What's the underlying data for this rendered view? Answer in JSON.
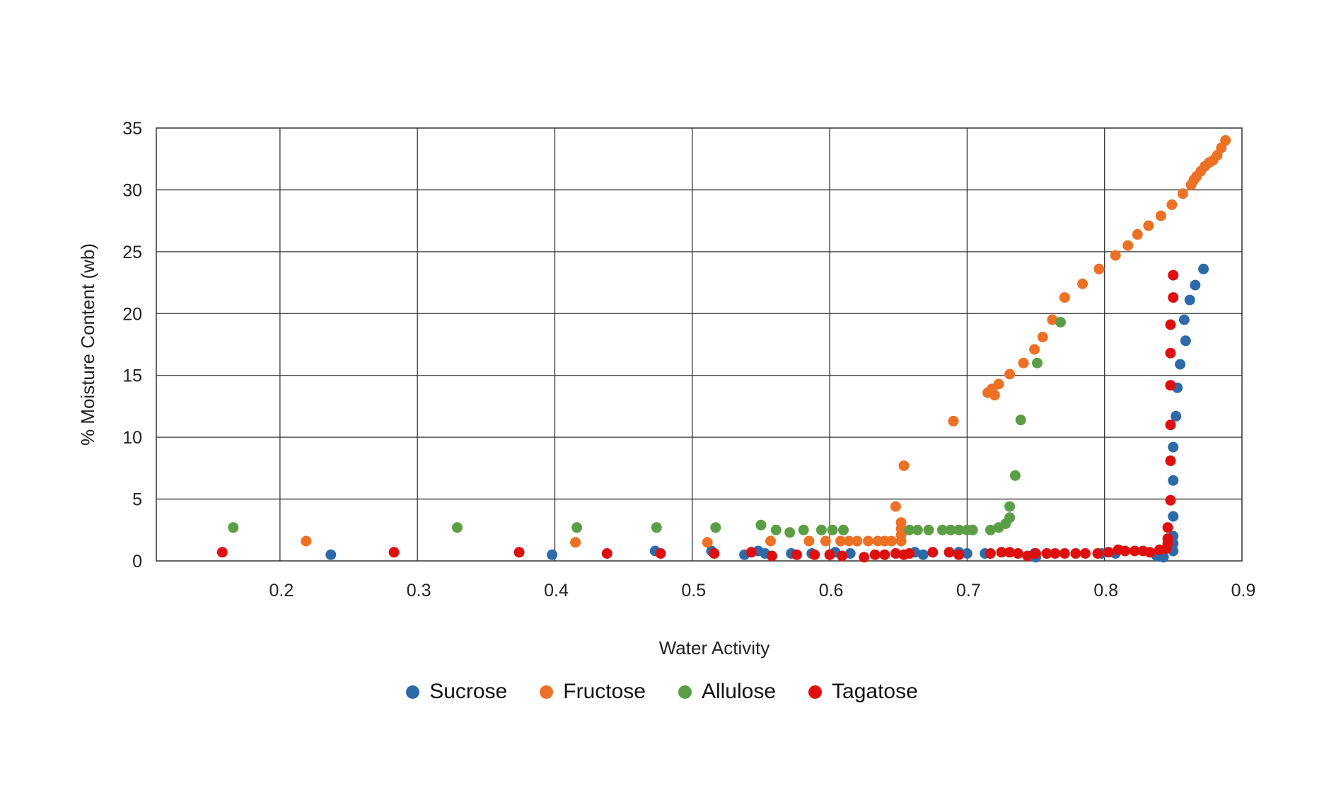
{
  "chart_data": {
    "type": "scatter",
    "title": "",
    "xlabel": "Water Activity",
    "ylabel": "% Moisture Content (wb)",
    "xlim": [
      0.11,
      0.9
    ],
    "ylim": [
      0,
      35
    ],
    "xticks": [
      0.2,
      0.3,
      0.4,
      0.5,
      0.6,
      0.7,
      0.8,
      0.9
    ],
    "yticks": [
      0,
      5,
      10,
      15,
      20,
      25,
      30,
      35
    ],
    "grid": true,
    "legend_position": "bottom",
    "series": [
      {
        "name": "Sucrose",
        "color": "#2E6AA8",
        "points": [
          [
            0.237,
            0.5
          ],
          [
            0.398,
            0.5
          ],
          [
            0.473,
            0.8
          ],
          [
            0.514,
            0.8
          ],
          [
            0.538,
            0.5
          ],
          [
            0.548,
            0.8
          ],
          [
            0.553,
            0.6
          ],
          [
            0.572,
            0.6
          ],
          [
            0.587,
            0.6
          ],
          [
            0.604,
            0.7
          ],
          [
            0.615,
            0.6
          ],
          [
            0.662,
            0.7
          ],
          [
            0.668,
            0.5
          ],
          [
            0.694,
            0.7
          ],
          [
            0.7,
            0.6
          ],
          [
            0.713,
            0.6
          ],
          [
            0.749,
            0.6
          ],
          [
            0.75,
            0.3
          ],
          [
            0.758,
            0.6
          ],
          [
            0.798,
            0.6
          ],
          [
            0.808,
            0.6
          ],
          [
            0.838,
            0.4
          ],
          [
            0.843,
            0.3
          ],
          [
            0.85,
            0.8
          ],
          [
            0.85,
            1.4
          ],
          [
            0.85,
            2.0
          ],
          [
            0.85,
            3.6
          ],
          [
            0.85,
            6.5
          ],
          [
            0.85,
            9.2
          ],
          [
            0.852,
            11.7
          ],
          [
            0.853,
            14.0
          ],
          [
            0.855,
            15.9
          ],
          [
            0.859,
            17.8
          ],
          [
            0.858,
            19.5
          ],
          [
            0.862,
            21.1
          ],
          [
            0.866,
            22.3
          ],
          [
            0.872,
            23.6
          ]
        ]
      },
      {
        "name": "Fructose",
        "color": "#ED7125",
        "points": [
          [
            0.219,
            1.6
          ],
          [
            0.415,
            1.5
          ],
          [
            0.511,
            1.5
          ],
          [
            0.557,
            1.6
          ],
          [
            0.585,
            1.6
          ],
          [
            0.597,
            1.6
          ],
          [
            0.608,
            1.6
          ],
          [
            0.614,
            1.6
          ],
          [
            0.62,
            1.6
          ],
          [
            0.628,
            1.6
          ],
          [
            0.635,
            1.6
          ],
          [
            0.64,
            1.6
          ],
          [
            0.645,
            1.6
          ],
          [
            0.648,
            4.4
          ],
          [
            0.652,
            1.6
          ],
          [
            0.652,
            2.1
          ],
          [
            0.652,
            2.6
          ],
          [
            0.652,
            3.1
          ],
          [
            0.654,
            7.7
          ],
          [
            0.69,
            11.3
          ],
          [
            0.715,
            13.6
          ],
          [
            0.718,
            13.9
          ],
          [
            0.72,
            13.4
          ],
          [
            0.723,
            14.3
          ],
          [
            0.731,
            15.1
          ],
          [
            0.741,
            16.0
          ],
          [
            0.749,
            17.1
          ],
          [
            0.755,
            18.1
          ],
          [
            0.762,
            19.5
          ],
          [
            0.771,
            21.3
          ],
          [
            0.784,
            22.4
          ],
          [
            0.796,
            23.6
          ],
          [
            0.808,
            24.7
          ],
          [
            0.817,
            25.5
          ],
          [
            0.824,
            26.4
          ],
          [
            0.832,
            27.1
          ],
          [
            0.841,
            27.9
          ],
          [
            0.849,
            28.8
          ],
          [
            0.857,
            29.7
          ],
          [
            0.863,
            30.4
          ],
          [
            0.865,
            30.8
          ],
          [
            0.867,
            31.1
          ],
          [
            0.87,
            31.5
          ],
          [
            0.873,
            31.9
          ],
          [
            0.876,
            32.2
          ],
          [
            0.879,
            32.4
          ],
          [
            0.882,
            32.8
          ],
          [
            0.885,
            33.4
          ],
          [
            0.888,
            34.0
          ]
        ]
      },
      {
        "name": "Allulose",
        "color": "#5C9E46",
        "points": [
          [
            0.166,
            2.7
          ],
          [
            0.329,
            2.7
          ],
          [
            0.416,
            2.7
          ],
          [
            0.474,
            2.7
          ],
          [
            0.517,
            2.7
          ],
          [
            0.55,
            2.9
          ],
          [
            0.561,
            2.5
          ],
          [
            0.571,
            2.3
          ],
          [
            0.581,
            2.5
          ],
          [
            0.594,
            2.5
          ],
          [
            0.602,
            2.5
          ],
          [
            0.61,
            2.5
          ],
          [
            0.658,
            2.5
          ],
          [
            0.664,
            2.5
          ],
          [
            0.672,
            2.5
          ],
          [
            0.682,
            2.5
          ],
          [
            0.688,
            2.5
          ],
          [
            0.694,
            2.5
          ],
          [
            0.7,
            2.5
          ],
          [
            0.704,
            2.5
          ],
          [
            0.717,
            2.5
          ],
          [
            0.723,
            2.7
          ],
          [
            0.728,
            3.0
          ],
          [
            0.731,
            3.5
          ],
          [
            0.731,
            4.4
          ],
          [
            0.735,
            6.9
          ],
          [
            0.739,
            11.4
          ],
          [
            0.751,
            16.0
          ],
          [
            0.768,
            19.3
          ]
        ]
      },
      {
        "name": "Tagatose",
        "color": "#DE0F0F",
        "points": [
          [
            0.158,
            0.7
          ],
          [
            0.283,
            0.7
          ],
          [
            0.374,
            0.7
          ],
          [
            0.438,
            0.6
          ],
          [
            0.477,
            0.6
          ],
          [
            0.516,
            0.6
          ],
          [
            0.543,
            0.7
          ],
          [
            0.558,
            0.4
          ],
          [
            0.576,
            0.5
          ],
          [
            0.589,
            0.5
          ],
          [
            0.6,
            0.5
          ],
          [
            0.609,
            0.4
          ],
          [
            0.625,
            0.3
          ],
          [
            0.633,
            0.5
          ],
          [
            0.64,
            0.5
          ],
          [
            0.648,
            0.6
          ],
          [
            0.654,
            0.5
          ],
          [
            0.658,
            0.6
          ],
          [
            0.675,
            0.7
          ],
          [
            0.687,
            0.7
          ],
          [
            0.694,
            0.5
          ],
          [
            0.717,
            0.6
          ],
          [
            0.725,
            0.7
          ],
          [
            0.731,
            0.7
          ],
          [
            0.737,
            0.6
          ],
          [
            0.744,
            0.4
          ],
          [
            0.75,
            0.6
          ],
          [
            0.758,
            0.6
          ],
          [
            0.764,
            0.6
          ],
          [
            0.771,
            0.6
          ],
          [
            0.779,
            0.6
          ],
          [
            0.786,
            0.6
          ],
          [
            0.795,
            0.6
          ],
          [
            0.803,
            0.7
          ],
          [
            0.81,
            0.9
          ],
          [
            0.815,
            0.8
          ],
          [
            0.822,
            0.8
          ],
          [
            0.828,
            0.8
          ],
          [
            0.833,
            0.7
          ],
          [
            0.84,
            0.9
          ],
          [
            0.845,
            1.0
          ],
          [
            0.846,
            1.4
          ],
          [
            0.846,
            1.8
          ],
          [
            0.846,
            2.7
          ],
          [
            0.848,
            4.9
          ],
          [
            0.848,
            8.1
          ],
          [
            0.848,
            11.0
          ],
          [
            0.848,
            14.2
          ],
          [
            0.848,
            16.8
          ],
          [
            0.848,
            19.1
          ],
          [
            0.85,
            21.3
          ],
          [
            0.85,
            23.1
          ]
        ]
      }
    ]
  }
}
